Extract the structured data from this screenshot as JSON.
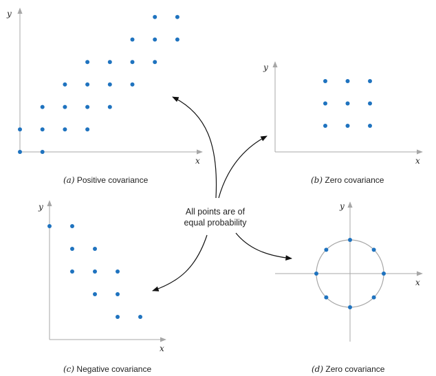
{
  "colors": {
    "dot": "#1f73bf",
    "axis": "#a7a7a7",
    "arrow": "#111111",
    "text": "#222222"
  },
  "center_text": {
    "line1": "All points are of",
    "line2": "equal probability"
  },
  "panels": {
    "a": {
      "tag": "(a)",
      "caption": " Positive covariance",
      "xlabel": "x",
      "ylabel": "y"
    },
    "b": {
      "tag": "(b)",
      "caption": " Zero covariance",
      "xlabel": "x",
      "ylabel": "y"
    },
    "c": {
      "tag": "(c)",
      "caption": " Negative covariance",
      "xlabel": "x",
      "ylabel": "y"
    },
    "d": {
      "tag": "(d)",
      "caption": " Zero covariance",
      "xlabel": "x",
      "ylabel": "y"
    }
  },
  "chart_data": [
    {
      "type": "scatter",
      "title": "(a) Positive covariance",
      "xlabel": "x",
      "ylabel": "y",
      "points": [
        [
          0,
          0
        ],
        [
          1,
          0
        ],
        [
          0,
          1
        ],
        [
          1,
          1
        ],
        [
          2,
          1
        ],
        [
          3,
          1
        ],
        [
          1,
          2
        ],
        [
          2,
          2
        ],
        [
          3,
          2
        ],
        [
          4,
          2
        ],
        [
          2,
          3
        ],
        [
          3,
          3
        ],
        [
          4,
          3
        ],
        [
          5,
          3
        ],
        [
          3,
          4
        ],
        [
          4,
          4
        ],
        [
          5,
          4
        ],
        [
          6,
          4
        ],
        [
          5,
          5
        ],
        [
          6,
          5
        ],
        [
          7,
          5
        ],
        [
          6,
          6
        ],
        [
          7,
          6
        ]
      ]
    },
    {
      "type": "scatter",
      "title": "(b) Zero covariance",
      "xlabel": "x",
      "ylabel": "y",
      "points": [
        [
          0,
          0
        ],
        [
          1,
          0
        ],
        [
          2,
          0
        ],
        [
          0,
          1
        ],
        [
          1,
          1
        ],
        [
          2,
          1
        ],
        [
          0,
          2
        ],
        [
          1,
          2
        ],
        [
          2,
          2
        ]
      ]
    },
    {
      "type": "scatter",
      "title": "(c) Negative covariance",
      "xlabel": "x",
      "ylabel": "y",
      "points": [
        [
          0,
          4
        ],
        [
          1,
          4
        ],
        [
          1,
          3
        ],
        [
          2,
          3
        ],
        [
          1,
          2
        ],
        [
          2,
          2
        ],
        [
          3,
          2
        ],
        [
          2,
          1
        ],
        [
          3,
          1
        ],
        [
          3,
          0
        ],
        [
          4,
          0
        ]
      ]
    },
    {
      "type": "scatter",
      "title": "(d) Zero covariance",
      "xlabel": "x",
      "ylabel": "y",
      "circle": true,
      "angles_deg": [
        0,
        45,
        90,
        135,
        180,
        225,
        270,
        315
      ]
    }
  ]
}
